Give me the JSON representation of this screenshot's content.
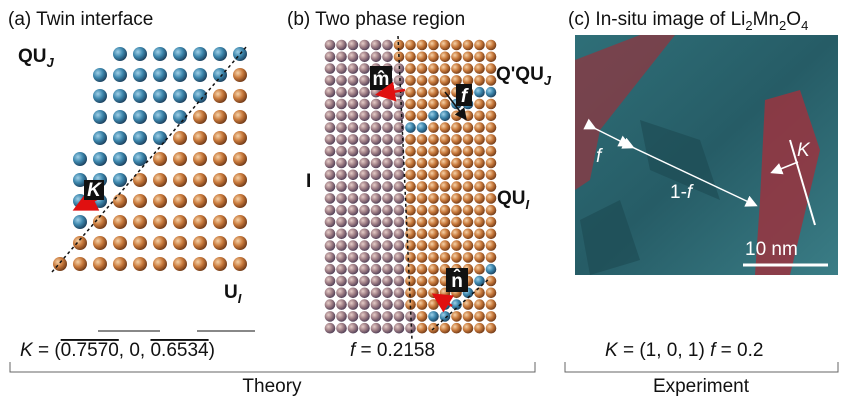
{
  "panel_a": {
    "title": "(a) Twin interface",
    "label_top": {
      "main": "QU",
      "sub": "J"
    },
    "label_bottom": {
      "main": "U",
      "sub": "I"
    },
    "vector_label": "K",
    "equation": {
      "lhs": "K",
      "eq": " = (",
      "c1": "0.7570",
      "sep1": ", 0, ",
      "c3": "0.6534",
      "close": ")"
    }
  },
  "panel_b": {
    "title": "(b) Two phase region",
    "label_m": "m̂",
    "label_f": "f",
    "label_top": {
      "main": "Q'QU",
      "sub": "J"
    },
    "label_left": "I",
    "label_mid": {
      "main": "QU",
      "sub": "I"
    },
    "label_n": "n̂",
    "equation": {
      "lhs": "f",
      "rhs": " = 0.2158"
    }
  },
  "panel_c": {
    "title": [
      "(c) In-situ image of Li",
      "2",
      "Mn",
      "2",
      "O",
      "4"
    ],
    "label_f": "f",
    "label_1f": "1-",
    "label_1f_f": "f",
    "label_K": "K",
    "scale_bar": "10 nm",
    "equation": {
      "lhs_K": "K",
      "mid": " = (1, 0, 1)  ",
      "lhs_f": "f",
      "rhs": " = 0.2"
    }
  },
  "footer": {
    "theory": "Theory",
    "experiment": "Experiment"
  }
}
